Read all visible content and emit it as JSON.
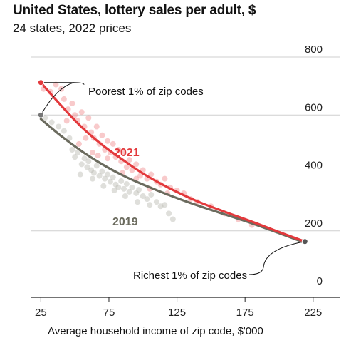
{
  "header": {
    "title": "United States, lottery sales per adult, $",
    "subtitle": "24 states, 2022 prices"
  },
  "colors": {
    "series_2021": "#e3393c",
    "series_2019": "#6b6b5e",
    "dots_2021": "#f08a8c",
    "dots_2019": "#b9b9b0",
    "grid": "#cfcfcf",
    "axis": "#222222"
  },
  "chart_data": {
    "type": "scatter",
    "xlabel": "Average household income of zip code, $'000",
    "ylabel": "",
    "xlim": [
      18,
      245
    ],
    "ylim": [
      0,
      800
    ],
    "x_ticks": [
      25,
      75,
      125,
      175,
      225
    ],
    "y_ticks": [
      0,
      200,
      400,
      600,
      800
    ],
    "y_axis_side": "right",
    "grid": "horizontal",
    "series": [
      {
        "name": "2021",
        "kind": "fit-line",
        "color": "#e3393c",
        "points": [
          [
            25,
            712
          ],
          [
            40,
            632
          ],
          [
            55,
            558
          ],
          [
            70,
            497
          ],
          [
            85,
            446
          ],
          [
            100,
            398
          ],
          [
            120,
            346
          ],
          [
            140,
            302
          ],
          [
            160,
            266
          ],
          [
            180,
            232
          ],
          [
            200,
            196
          ],
          [
            219,
            163
          ]
        ]
      },
      {
        "name": "2019",
        "kind": "fit-line",
        "color": "#6b6b5e",
        "points": [
          [
            25,
            586
          ],
          [
            40,
            527
          ],
          [
            55,
            475
          ],
          [
            70,
            430
          ],
          [
            85,
            392
          ],
          [
            100,
            360
          ],
          [
            120,
            322
          ],
          [
            140,
            288
          ],
          [
            160,
            257
          ],
          [
            180,
            226
          ],
          [
            200,
            192
          ],
          [
            219,
            159
          ]
        ]
      },
      {
        "name": "2021 zip-code groups",
        "kind": "scatter",
        "color": "#f08a8c",
        "points": [
          [
            27,
            690
          ],
          [
            32,
            680
          ],
          [
            36,
            705
          ],
          [
            40,
            690
          ],
          [
            42,
            655
          ],
          [
            45,
            620
          ],
          [
            48,
            640
          ],
          [
            50,
            600
          ],
          [
            52,
            580
          ],
          [
            55,
            610
          ],
          [
            57,
            560
          ],
          [
            60,
            590
          ],
          [
            62,
            540
          ],
          [
            64,
            520
          ],
          [
            66,
            560
          ],
          [
            68,
            500
          ],
          [
            70,
            530
          ],
          [
            72,
            480
          ],
          [
            74,
            510
          ],
          [
            76,
            470
          ],
          [
            78,
            500
          ],
          [
            80,
            455
          ],
          [
            82,
            480
          ],
          [
            84,
            440
          ],
          [
            86,
            470
          ],
          [
            88,
            420
          ],
          [
            90,
            445
          ],
          [
            92,
            410
          ],
          [
            95,
            430
          ],
          [
            98,
            390
          ],
          [
            100,
            410
          ],
          [
            103,
            380
          ],
          [
            106,
            395
          ],
          [
            110,
            370
          ],
          [
            113,
            360
          ],
          [
            116,
            380
          ],
          [
            120,
            350
          ],
          [
            125,
            340
          ],
          [
            130,
            330
          ],
          [
            135,
            310
          ],
          [
            140,
            300
          ],
          [
            150,
            285
          ],
          [
            160,
            260
          ],
          [
            170,
            240
          ],
          [
            180,
            220
          ],
          [
            58,
            520
          ],
          [
            63,
            470
          ],
          [
            74,
            450
          ],
          [
            85,
            400
          ],
          [
            95,
            380
          ],
          [
            105,
            345
          ],
          [
            118,
            330
          ],
          [
            44,
            580
          ],
          [
            53,
            500
          ],
          [
            67,
            460
          ]
        ]
      },
      {
        "name": "2019 zip-code groups",
        "kind": "scatter",
        "color": "#b9b9b0",
        "points": [
          [
            28,
            590
          ],
          [
            33,
            575
          ],
          [
            38,
            560
          ],
          [
            42,
            545
          ],
          [
            46,
            520
          ],
          [
            48,
            480
          ],
          [
            50,
            455
          ],
          [
            52,
            470
          ],
          [
            55,
            430
          ],
          [
            57,
            450
          ],
          [
            59,
            420
          ],
          [
            60,
            440
          ],
          [
            62,
            410
          ],
          [
            64,
            400
          ],
          [
            66,
            425
          ],
          [
            68,
            390
          ],
          [
            70,
            405
          ],
          [
            72,
            380
          ],
          [
            74,
            395
          ],
          [
            76,
            370
          ],
          [
            78,
            385
          ],
          [
            80,
            360
          ],
          [
            82,
            350
          ],
          [
            84,
            372
          ],
          [
            86,
            345
          ],
          [
            88,
            362
          ],
          [
            90,
            335
          ],
          [
            92,
            350
          ],
          [
            95,
            330
          ],
          [
            97,
            342
          ],
          [
            100,
            320
          ],
          [
            103,
            310
          ],
          [
            106,
            325
          ],
          [
            110,
            300
          ],
          [
            113,
            285
          ],
          [
            116,
            290
          ],
          [
            119,
            260
          ],
          [
            122,
            240
          ],
          [
            54,
            395
          ],
          [
            63,
            380
          ],
          [
            71,
            355
          ],
          [
            79,
            340
          ],
          [
            87,
            320
          ],
          [
            96,
            300
          ],
          [
            105,
            290
          ]
        ]
      }
    ],
    "labels": {
      "series_2021": "2021",
      "series_2019": "2019",
      "poorest": "Poorest 1% of zip codes",
      "richest": "Richest 1% of zip codes"
    },
    "annotations": [
      {
        "text": "Poorest 1% of zip codes",
        "points": [
          [
            25,
            712
          ],
          [
            25,
            600
          ]
        ]
      },
      {
        "text": "Richest 1% of zip codes",
        "points": [
          [
            219,
            163
          ]
        ]
      }
    ]
  }
}
